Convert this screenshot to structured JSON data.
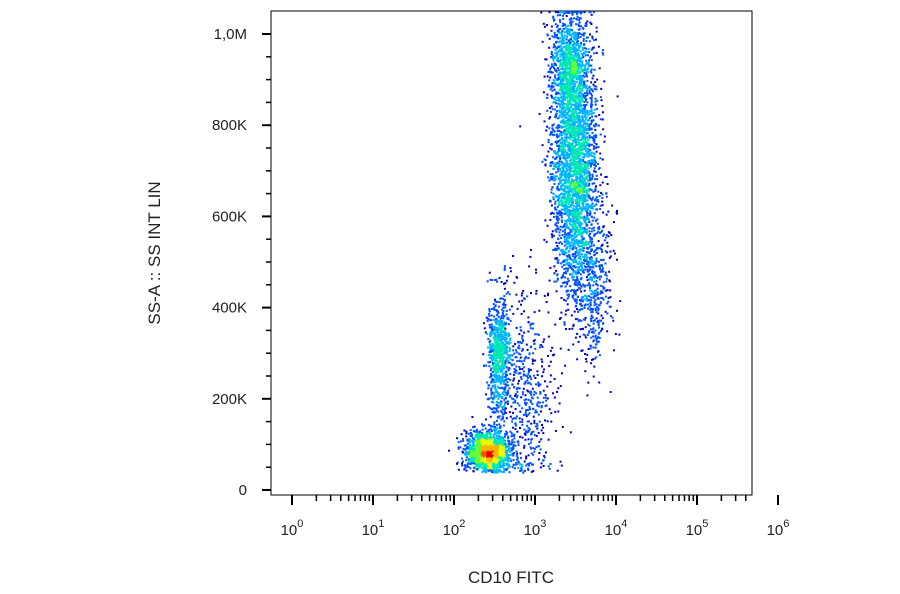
{
  "chart_data": {
    "type": "scatter",
    "subtype": "flow-cytometry density dot plot",
    "xlabel": "CD10 FITC",
    "ylabel": "SS-A :: SS INT LIN",
    "x_scale": "log",
    "y_scale": "linear",
    "xlim": [
      1,
      1000000
    ],
    "ylim": [
      0,
      1050000
    ],
    "x_ticks": [
      {
        "value": 1,
        "base": "10",
        "exp": "0"
      },
      {
        "value": 10,
        "base": "10",
        "exp": "1"
      },
      {
        "value": 100,
        "base": "10",
        "exp": "2"
      },
      {
        "value": 1000,
        "base": "10",
        "exp": "3"
      },
      {
        "value": 10000,
        "base": "10",
        "exp": "4"
      },
      {
        "value": 100000,
        "base": "10",
        "exp": "5"
      },
      {
        "value": 1000000,
        "base": "10",
        "exp": "6"
      }
    ],
    "y_ticks": [
      {
        "value": 0,
        "label": "0"
      },
      {
        "value": 200000,
        "label": "200K"
      },
      {
        "value": 400000,
        "label": "400K"
      },
      {
        "value": 600000,
        "label": "600K"
      },
      {
        "value": 800000,
        "label": "800K"
      },
      {
        "value": 1000000,
        "label": "1,0M"
      }
    ],
    "populations": [
      {
        "x_center": 260,
        "y_center": 85000,
        "x_spread_decades": 0.13,
        "y_spread": 22000,
        "weight": 0.22
      },
      {
        "x_center": 350,
        "y_center": 300000,
        "x_spread_decades": 0.07,
        "y_spread": 65000,
        "weight": 0.1
      },
      {
        "x_center": 3000,
        "y_center": 700000,
        "x_spread_decades": 0.14,
        "y_spread": 130000,
        "weight": 0.4
      },
      {
        "x_center": 2600,
        "y_center": 930000,
        "x_spread_decades": 0.12,
        "y_spread": 60000,
        "weight": 0.14
      },
      {
        "x_center": 700,
        "y_center": 220000,
        "x_spread_decades": 0.2,
        "y_spread": 110000,
        "weight": 0.08
      },
      {
        "x_center": 5000,
        "y_center": 450000,
        "x_spread_decades": 0.12,
        "y_spread": 80000,
        "weight": 0.06
      }
    ],
    "colormap": [
      "#0000c8",
      "#0050ff",
      "#00b4ff",
      "#00e6b4",
      "#64ff32",
      "#e6ff00",
      "#ffb400",
      "#ff5000",
      "#e60000"
    ],
    "grid": false,
    "legend": "none"
  }
}
